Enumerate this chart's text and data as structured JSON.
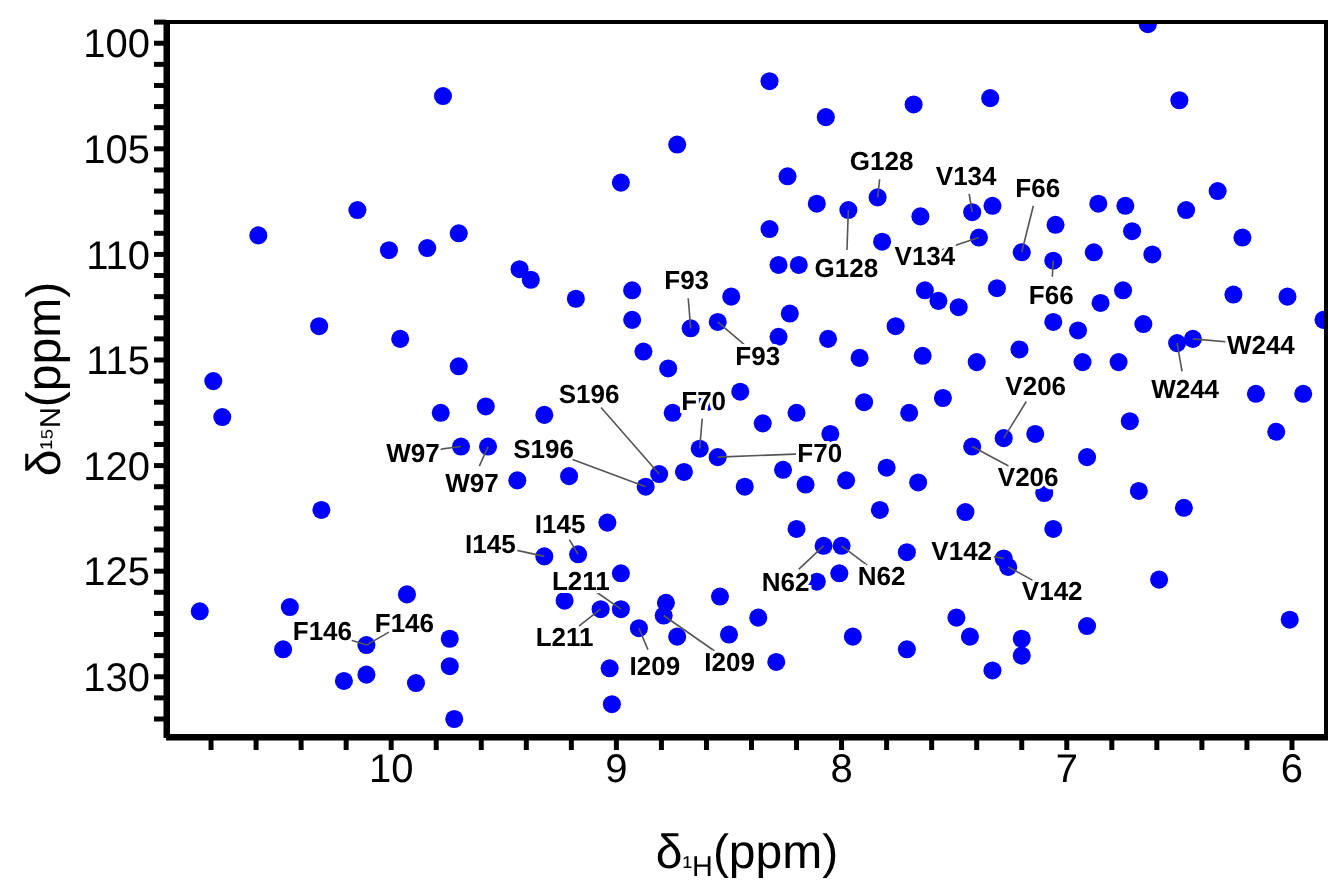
{
  "chart_data": {
    "type": "scatter",
    "xlabel": "δ$_{¹H}$(ppm)",
    "ylabel": "δ$_{¹⁵N}$(ppm)",
    "xlim": [
      11.0,
      5.84
    ],
    "ylim": [
      132.9,
      98.9
    ],
    "xticks": [
      {
        "value": 10.8,
        "label": null
      },
      {
        "value": 10.6,
        "label": null
      },
      {
        "value": 10.4,
        "label": null
      },
      {
        "value": 10.2,
        "label": null
      },
      10,
      {
        "value": 9.8,
        "label": null
      },
      {
        "value": 9.6,
        "label": null
      },
      {
        "value": 9.4,
        "label": null
      },
      {
        "value": 9.2,
        "label": null
      },
      9,
      {
        "value": 8.8,
        "label": null
      },
      {
        "value": 8.6,
        "label": null
      },
      {
        "value": 8.4,
        "label": null
      },
      {
        "value": 8.2,
        "label": null
      },
      8,
      {
        "value": 7.8,
        "label": null
      },
      {
        "value": 7.6,
        "label": null
      },
      {
        "value": 7.4,
        "label": null
      },
      {
        "value": 7.2,
        "label": null
      },
      7,
      {
        "value": 6.8,
        "label": null
      },
      {
        "value": 6.6,
        "label": null
      },
      {
        "value": 6.4,
        "label": null
      },
      {
        "value": 6.2,
        "label": null
      },
      6
    ],
    "yticks": [
      {
        "value": 99,
        "label": null
      },
      100,
      {
        "value": 101,
        "label": null
      },
      {
        "value": 102,
        "label": null
      },
      {
        "value": 103,
        "label": null
      },
      {
        "value": 104,
        "label": null
      },
      105,
      {
        "value": 106,
        "label": null
      },
      {
        "value": 107,
        "label": null
      },
      {
        "value": 108,
        "label": null
      },
      {
        "value": 109,
        "label": null
      },
      110,
      {
        "value": 111,
        "label": null
      },
      {
        "value": 112,
        "label": null
      },
      {
        "value": 113,
        "label": null
      },
      {
        "value": 114,
        "label": null
      },
      115,
      {
        "value": 116,
        "label": null
      },
      {
        "value": 117,
        "label": null
      },
      {
        "value": 118,
        "label": null
      },
      {
        "value": 119,
        "label": null
      },
      120,
      {
        "value": 121,
        "label": null
      },
      {
        "value": 122,
        "label": null
      },
      {
        "value": 123,
        "label": null
      },
      {
        "value": 124,
        "label": null
      },
      125,
      {
        "value": 126,
        "label": null
      },
      {
        "value": 127,
        "label": null
      },
      {
        "value": 128,
        "label": null
      },
      {
        "value": 129,
        "label": null
      },
      130,
      {
        "value": 131,
        "label": null
      },
      {
        "value": 132,
        "label": null
      }
    ],
    "grid": false,
    "legend": false,
    "marker": "circle",
    "color": "#0000ff",
    "x": [
      9.77,
      8.98,
      8.73,
      10.15,
      9.7,
      9.84,
      10.01,
      9.43,
      9.38,
      9.18,
      8.93,
      8.93,
      9.96,
      9.7,
      8.88,
      8.77,
      10.32,
      10.59,
      10.79,
      10.75,
      10.31,
      10.85,
      10.45,
      10.48,
      10.11,
      10.21,
      10.11,
      9.93,
      9.74,
      9.74,
      9.89,
      9.72,
      9.69,
      9.57,
      9.44,
      9.78,
      9.58,
      9.32,
      9.21,
      9.32,
      9.17,
      9.23,
      9.07,
      8.98,
      8.9,
      9.03,
      9.02,
      9.04,
      8.98,
      8.87,
      8.81,
      8.78,
      6.64,
      8.32,
      7.68,
      7.34,
      8.07,
      8.24,
      7.84,
      7.97,
      8.11,
      8.32,
      8.28,
      8.19,
      7.82,
      7.65,
      7.42,
      7.39,
      7.33,
      7.2,
      7.06,
      7.05,
      6.86,
      6.74,
      6.71,
      6.62,
      6.47,
      6.33,
      6.88,
      8.49,
      8.67,
      8.55,
      8.23,
      8.28,
      8.06,
      7.76,
      7.63,
      7.57,
      7.48,
      7.31,
      7.06,
      6.95,
      6.93,
      6.85,
      6.75,
      6.66,
      6.51,
      6.44,
      6.77,
      7.92,
      7.64,
      7.4,
      7.21,
      6.16,
      5.95,
      5.86,
      6.02,
      6.26,
      6.22,
      6.5,
      8.63,
      8.55,
      8.7,
      8.43,
      8.26,
      8.16,
      7.98,
      7.8,
      7.66,
      7.83,
      7.42,
      7.28,
      7.14,
      6.91,
      6.72,
      7.1,
      7.06,
      7.45,
      7.28,
      7.26,
      7.71,
      8.08,
      8.0,
      8.01,
      8.2,
      8.11,
      8.37,
      8.54,
      8.79,
      8.5,
      8.73,
      8.29,
      7.95,
      7.71,
      7.49,
      7.43,
      7.33,
      7.2,
      7.2,
      6.59,
      6.68,
      6.48,
      6.07,
      6.01,
      6.91,
      8.75,
      8.6,
      8.45,
      8.35,
      8.2,
      8.05,
      7.9,
      7.7,
      7.55
    ],
    "values": [
      102.5,
      106.6,
      104.8,
      107.9,
      109.0,
      109.7,
      109.8,
      110.7,
      111.2,
      112.1,
      111.7,
      113.1,
      114.0,
      115.3,
      114.6,
      115.4,
      113.4,
      109.1,
      116.0,
      117.7,
      122.1,
      126.9,
      126.7,
      128.7,
      128.5,
      130.2,
      129.9,
      126.1,
      128.2,
      129.5,
      130.3,
      132.0,
      119.1,
      119.1,
      120.7,
      117.5,
      117.2,
      117.6,
      120.5,
      124.3,
      124.2,
      126.4,
      126.8,
      126.8,
      127.7,
      129.6,
      131.3,
      122.7,
      125.1,
      121.0,
      120.4,
      126.5,
      99.1,
      101.8,
      102.9,
      102.6,
      103.5,
      106.3,
      107.3,
      107.9,
      107.6,
      108.8,
      110.5,
      110.5,
      109.4,
      108.2,
      108.0,
      109.2,
      107.7,
      109.9,
      110.3,
      108.6,
      107.6,
      107.7,
      108.9,
      110.0,
      107.9,
      107.0,
      109.9,
      112.0,
      113.5,
      113.2,
      112.8,
      113.9,
      114.0,
      113.4,
      111.7,
      112.2,
      112.5,
      111.6,
      113.2,
      113.6,
      115.1,
      112.3,
      111.7,
      113.3,
      114.2,
      114.0,
      115.1,
      114.9,
      114.8,
      115.1,
      114.5,
      116.6,
      116.6,
      113.1,
      112.0,
      111.9,
      109.2,
      102.7,
      119.2,
      119.6,
      120.3,
      121.0,
      120.2,
      120.9,
      120.7,
      120.1,
      120.8,
      122.1,
      119.1,
      118.7,
      118.5,
      119.6,
      117.9,
      121.3,
      123.0,
      122.2,
      124.4,
      124.8,
      124.1,
      123.8,
      123.8,
      125.1,
      123.0,
      125.5,
      127.2,
      126.2,
      127.1,
      128.0,
      128.1,
      129.3,
      128.1,
      128.7,
      127.2,
      128.1,
      129.7,
      128.2,
      129.0,
      125.4,
      121.2,
      122.0,
      118.4,
      127.3,
      127.6,
      117.5,
      117.0,
      116.5,
      118.0,
      117.5,
      118.5,
      117.0,
      117.5,
      116.8
    ],
    "annotations": [
      {
        "text": "G128",
        "x": 7.84,
        "y": 107.3
      },
      {
        "text": "V134",
        "x": 7.42,
        "y": 108.0
      },
      {
        "text": "F66",
        "x": 7.2,
        "y": 109.9
      },
      {
        "text": "G128",
        "x": 7.97,
        "y": 107.9
      },
      {
        "text": "V134",
        "x": 7.39,
        "y": 109.2
      },
      {
        "text": "F66",
        "x": 7.06,
        "y": 110.3
      },
      {
        "text": "F93",
        "x": 8.67,
        "y": 113.5
      },
      {
        "text": "F93",
        "x": 8.55,
        "y": 113.2
      },
      {
        "text": "W244",
        "x": 6.44,
        "y": 114.0
      },
      {
        "text": "W244",
        "x": 6.51,
        "y": 114.2
      },
      {
        "text": "V206",
        "x": 7.28,
        "y": 118.7
      },
      {
        "text": "F70",
        "x": 8.63,
        "y": 119.2
      },
      {
        "text": "F70",
        "x": 8.55,
        "y": 119.6
      },
      {
        "text": "V206",
        "x": 7.42,
        "y": 119.1
      },
      {
        "text": "V142",
        "x": 7.28,
        "y": 124.4
      },
      {
        "text": "V142",
        "x": 7.26,
        "y": 124.8
      },
      {
        "text": "N62",
        "x": 8.08,
        "y": 123.8
      },
      {
        "text": "N62",
        "x": 8.0,
        "y": 123.8
      },
      {
        "text": "I209",
        "x": 8.79,
        "y": 127.1
      },
      {
        "text": "S196",
        "x": 8.81,
        "y": 120.4
      },
      {
        "text": "W97",
        "x": 9.69,
        "y": 119.1
      },
      {
        "text": "S196",
        "x": 8.87,
        "y": 121.0
      },
      {
        "text": "W97",
        "x": 9.57,
        "y": 119.1
      },
      {
        "text": "I145",
        "x": 9.17,
        "y": 124.2
      },
      {
        "text": "I145",
        "x": 9.32,
        "y": 124.3
      },
      {
        "text": "L211",
        "x": 8.98,
        "y": 126.8
      },
      {
        "text": "L211",
        "x": 9.07,
        "y": 126.8
      },
      {
        "text": "I209",
        "x": 8.9,
        "y": 127.7
      },
      {
        "text": "F146",
        "x": 10.11,
        "y": 128.5
      },
      {
        "text": "F146",
        "x": 10.11,
        "y": 128.5
      }
    ]
  }
}
